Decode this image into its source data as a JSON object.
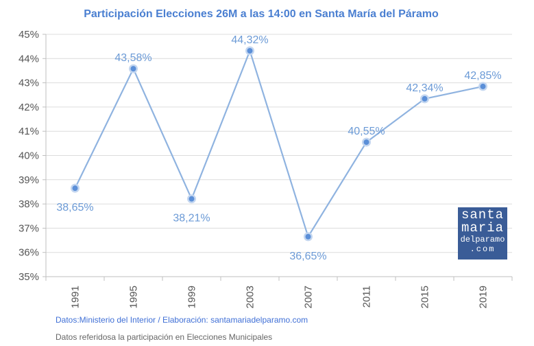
{
  "chart_data": {
    "type": "line",
    "title": "Participación Elecciones 26M a las 14:00 en Santa María del Páramo",
    "categories": [
      "1991",
      "1995",
      "1999",
      "2003",
      "2007",
      "2011",
      "2015",
      "2019"
    ],
    "values": [
      38.65,
      43.58,
      38.21,
      44.32,
      36.65,
      40.55,
      42.34,
      42.85
    ],
    "data_labels": [
      "38,65%",
      "43,58%",
      "38,21%",
      "44,32%",
      "36,65%",
      "40,55%",
      "42,34%",
      "42,85%"
    ],
    "ylim": [
      35,
      45
    ],
    "yticks": [
      "35%",
      "36%",
      "37%",
      "38%",
      "39%",
      "40%",
      "41%",
      "42%",
      "43%",
      "44%",
      "45%"
    ],
    "grid": "horizontal",
    "line_color": "#8fb3e0",
    "marker_color": "#5b8fd8"
  },
  "footer": {
    "source": "Datos:Ministerio del Interior / Elaboración: santamariadelparamo.com",
    "note": "Datos referidosa la participación en Elecciones Municipales"
  },
  "logo": {
    "line1": "santa",
    "line2": "maria",
    "line3": "delparamo",
    "line4": ".com"
  }
}
